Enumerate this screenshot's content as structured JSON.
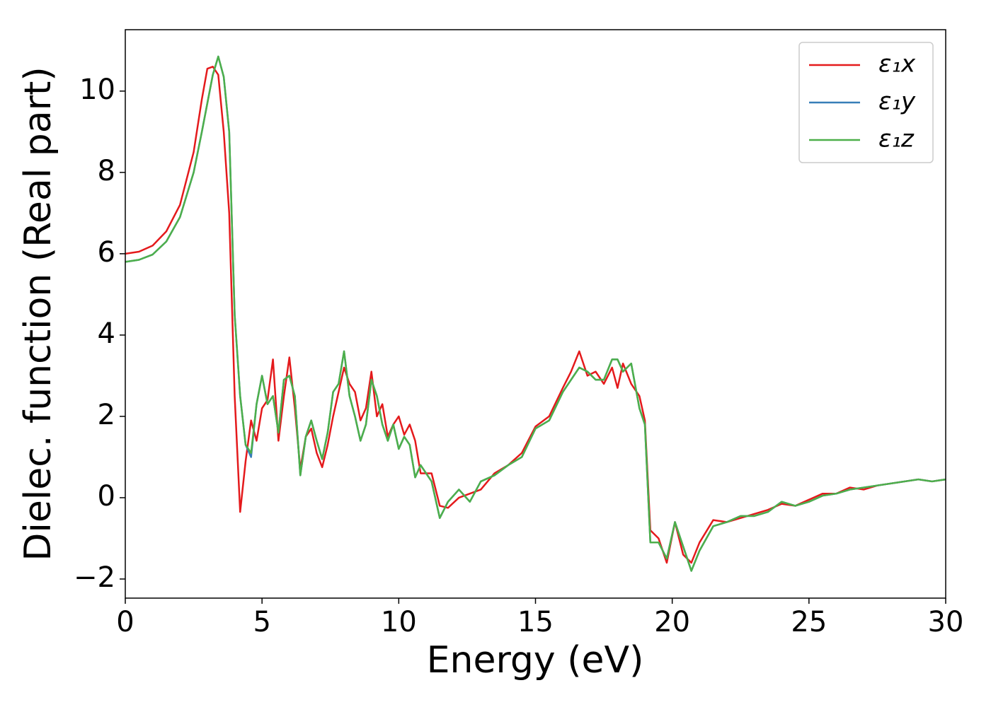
{
  "chart_data": {
    "type": "line",
    "xlabel": "Energy (eV)",
    "ylabel": "Dielec. function (Real part)",
    "x": [
      0,
      0.5,
      1,
      1.5,
      2,
      2.5,
      2.8,
      3.0,
      3.2,
      3.4,
      3.6,
      3.8,
      4.0,
      4.2,
      4.4,
      4.6,
      4.8,
      5.0,
      5.2,
      5.4,
      5.6,
      5.8,
      6.0,
      6.2,
      6.4,
      6.6,
      6.8,
      7.0,
      7.2,
      7.4,
      7.6,
      7.8,
      8.0,
      8.2,
      8.4,
      8.6,
      8.8,
      9.0,
      9.2,
      9.4,
      9.6,
      9.8,
      10.0,
      10.2,
      10.4,
      10.6,
      10.8,
      11.0,
      11.2,
      11.5,
      11.8,
      12.2,
      12.6,
      13.0,
      13.5,
      14.0,
      14.5,
      15.0,
      15.5,
      16.0,
      16.3,
      16.6,
      16.9,
      17.2,
      17.5,
      17.8,
      18.0,
      18.2,
      18.5,
      18.8,
      19.0,
      19.2,
      19.5,
      19.8,
      20.1,
      20.4,
      20.7,
      21.0,
      21.5,
      22.0,
      22.5,
      23.0,
      23.5,
      24.0,
      24.5,
      25.0,
      25.5,
      26.0,
      26.5,
      27.0,
      27.5,
      28.0,
      28.5,
      29.0,
      29.5,
      30.0
    ],
    "series": [
      {
        "name": "ε₁x",
        "color": "#e41a1c",
        "values": [
          6.0,
          6.05,
          6.2,
          6.55,
          7.2,
          8.5,
          9.8,
          10.55,
          10.6,
          10.4,
          9.0,
          7.0,
          2.5,
          -0.35,
          0.9,
          1.9,
          1.4,
          2.2,
          2.4,
          3.4,
          1.4,
          2.5,
          3.45,
          2.2,
          0.7,
          1.5,
          1.7,
          1.1,
          0.75,
          1.3,
          2.0,
          2.6,
          3.2,
          2.8,
          2.6,
          1.9,
          2.2,
          3.1,
          2.0,
          2.3,
          1.5,
          1.8,
          2.0,
          1.55,
          1.8,
          1.4,
          0.6,
          0.6,
          0.6,
          -0.2,
          -0.25,
          0.0,
          0.1,
          0.2,
          0.6,
          0.8,
          1.1,
          1.75,
          2.0,
          2.7,
          3.1,
          3.6,
          3.0,
          3.1,
          2.8,
          3.2,
          2.7,
          3.3,
          2.8,
          2.5,
          1.9,
          -0.8,
          -1.0,
          -1.6,
          -0.6,
          -1.4,
          -1.6,
          -1.1,
          -0.55,
          -0.6,
          -0.5,
          -0.4,
          -0.3,
          -0.15,
          -0.2,
          -0.05,
          0.1,
          0.1,
          0.25,
          0.2,
          0.3,
          0.35,
          0.4,
          0.45,
          0.4,
          0.45
        ]
      },
      {
        "name": "ε₁y",
        "color": "#377eb8",
        "values": [
          5.8,
          5.85,
          5.98,
          6.3,
          6.9,
          8.0,
          9.0,
          9.7,
          10.4,
          10.85,
          10.35,
          9.0,
          4.5,
          2.5,
          1.3,
          1.0,
          2.3,
          3.0,
          2.3,
          2.5,
          1.6,
          2.9,
          3.0,
          2.5,
          0.55,
          1.5,
          1.9,
          1.4,
          0.95,
          1.6,
          2.6,
          2.8,
          3.6,
          2.5,
          2.0,
          1.4,
          1.8,
          2.9,
          2.5,
          1.8,
          1.4,
          1.8,
          1.2,
          1.5,
          1.3,
          0.5,
          0.8,
          0.6,
          0.4,
          -0.5,
          -0.1,
          0.2,
          -0.1,
          0.4,
          0.55,
          0.8,
          1.0,
          1.7,
          1.9,
          2.6,
          2.9,
          3.2,
          3.1,
          2.9,
          2.9,
          3.4,
          3.4,
          3.1,
          3.3,
          2.2,
          1.8,
          -1.1,
          -1.1,
          -1.5,
          -0.6,
          -1.2,
          -1.8,
          -1.3,
          -0.7,
          -0.6,
          -0.45,
          -0.45,
          -0.35,
          -0.1,
          -0.2,
          -0.1,
          0.05,
          0.1,
          0.2,
          0.25,
          0.3,
          0.35,
          0.4,
          0.45,
          0.4,
          0.45
        ]
      },
      {
        "name": "ε₁z",
        "color": "#4daf4a",
        "values": [
          5.8,
          5.85,
          5.98,
          6.3,
          6.9,
          8.0,
          9.0,
          9.7,
          10.4,
          10.85,
          10.35,
          9.0,
          4.5,
          2.5,
          1.3,
          1.1,
          2.3,
          3.0,
          2.3,
          2.5,
          1.6,
          2.9,
          3.0,
          2.5,
          0.55,
          1.5,
          1.9,
          1.4,
          0.95,
          1.6,
          2.6,
          2.8,
          3.6,
          2.5,
          2.0,
          1.4,
          1.8,
          2.9,
          2.5,
          1.8,
          1.4,
          1.8,
          1.2,
          1.5,
          1.3,
          0.5,
          0.8,
          0.6,
          0.4,
          -0.5,
          -0.1,
          0.2,
          -0.1,
          0.4,
          0.55,
          0.8,
          1.0,
          1.7,
          1.9,
          2.6,
          2.9,
          3.2,
          3.1,
          2.9,
          2.9,
          3.4,
          3.4,
          3.1,
          3.3,
          2.2,
          1.8,
          -1.1,
          -1.1,
          -1.5,
          -0.6,
          -1.2,
          -1.8,
          -1.3,
          -0.7,
          -0.6,
          -0.45,
          -0.45,
          -0.35,
          -0.1,
          -0.2,
          -0.1,
          0.05,
          0.1,
          0.2,
          0.25,
          0.3,
          0.35,
          0.4,
          0.45,
          0.4,
          0.45
        ]
      }
    ],
    "xlim": [
      0,
      30
    ],
    "xticks": [
      0,
      5,
      10,
      15,
      20,
      25,
      30
    ],
    "ylim": [
      -2.47,
      11.51
    ],
    "yticks": [
      {
        "value": -2,
        "label": "−2"
      },
      0,
      2,
      4,
      6,
      8,
      10
    ],
    "grid": false,
    "legend": "upper right"
  }
}
